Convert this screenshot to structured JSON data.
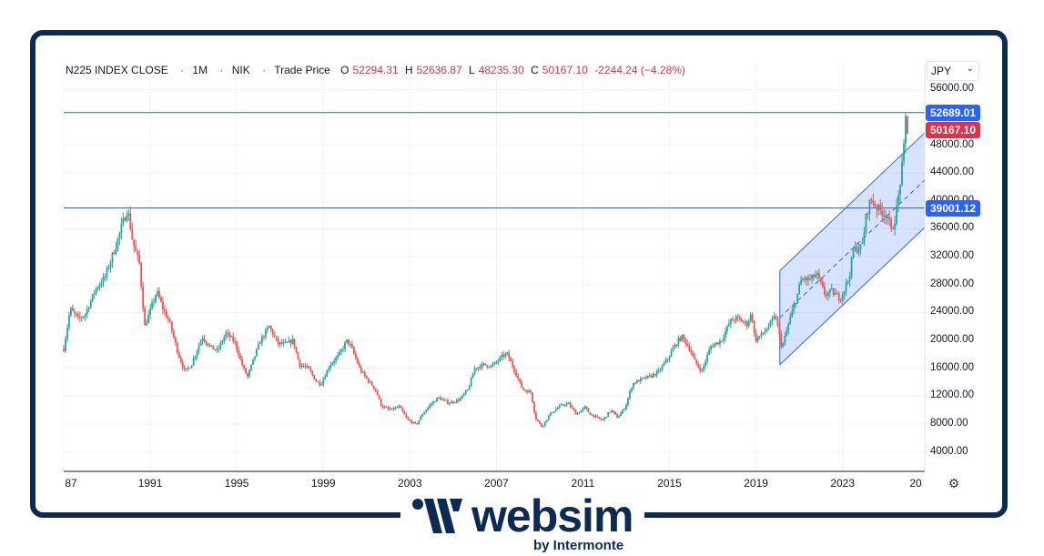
{
  "header": {
    "symbol": "N225 INDEX CLOSE",
    "interval": "1M",
    "exchange": "NIK",
    "price_type": "Trade Price",
    "open_label": "O",
    "open": "52294.31",
    "high_label": "H",
    "high": "52636.87",
    "low_label": "L",
    "low": "48235.30",
    "close_label": "C",
    "close": "50167.10",
    "change": "-2244.24 (−4.28%)"
  },
  "currency": "JPY",
  "price_tags": {
    "top": {
      "text": "52689.01",
      "value": 52689.01,
      "color": "#2962ff"
    },
    "last": {
      "text": "50167.10",
      "value": 50167.1,
      "color": "#e0314b"
    },
    "mid": {
      "text": "39001.12",
      "value": 39001.12,
      "color": "#2962ff"
    }
  },
  "brand": {
    "name": "websim",
    "tagline": "by Intermonte"
  },
  "colors": {
    "up": "#26a69a",
    "down": "#ef5350",
    "line": "#2962ff",
    "frame": "#0d2a52"
  },
  "chart_data": {
    "type": "candlestick",
    "title": "N225 INDEX CLOSE",
    "y_ticks": [
      "56000.00",
      "52000.00",
      "48000.00",
      "44000.00",
      "40000.00",
      "36000.00",
      "32000.00",
      "28000.00",
      "24000.00",
      "20000.00",
      "16000.00",
      "12000.00",
      "8000.00",
      "4000.00"
    ],
    "y_tick_values": [
      56000,
      52000,
      48000,
      44000,
      40000,
      36000,
      32000,
      28000,
      24000,
      20000,
      16000,
      12000,
      8000,
      4000
    ],
    "x_ticks": [
      "87",
      "1991",
      "1995",
      "1999",
      "2003",
      "2007",
      "2011",
      "2015",
      "2019",
      "2023",
      "20"
    ],
    "x_tick_values": [
      1987,
      1991,
      1995,
      1999,
      2003,
      2007,
      2011,
      2015,
      2019,
      2023,
      2027
    ],
    "xlim": [
      1987,
      2026.8
    ],
    "ylim": [
      1200,
      59700
    ],
    "horizontal_lines": [
      52689.01,
      39001.12
    ],
    "channel": {
      "x_start": 2020.1,
      "x_end": 2026.8,
      "upper": [
        30000,
        49800
      ],
      "lower": [
        16500,
        36200
      ],
      "mid": [
        23250,
        43000
      ]
    },
    "close_path": [
      [
        1987.0,
        18800
      ],
      [
        1987.3,
        24500
      ],
      [
        1987.7,
        23000
      ],
      [
        1988.0,
        23800
      ],
      [
        1988.5,
        27500
      ],
      [
        1988.9,
        29000
      ],
      [
        1989.4,
        33500
      ],
      [
        1989.8,
        37500
      ],
      [
        1989.95,
        38900
      ],
      [
        1990.2,
        34000
      ],
      [
        1990.5,
        31000
      ],
      [
        1990.75,
        22000
      ],
      [
        1990.95,
        23800
      ],
      [
        1991.3,
        27000
      ],
      [
        1991.6,
        24500
      ],
      [
        1991.9,
        22500
      ],
      [
        1992.3,
        18000
      ],
      [
        1992.6,
        15500
      ],
      [
        1992.9,
        16500
      ],
      [
        1993.4,
        20500
      ],
      [
        1993.8,
        19000
      ],
      [
        1994.1,
        18500
      ],
      [
        1994.5,
        21000
      ],
      [
        1994.9,
        19800
      ],
      [
        1995.3,
        16000
      ],
      [
        1995.5,
        14800
      ],
      [
        1995.8,
        17500
      ],
      [
        1996.1,
        20000
      ],
      [
        1996.5,
        22000
      ],
      [
        1996.9,
        19500
      ],
      [
        1997.3,
        19500
      ],
      [
        1997.6,
        20000
      ],
      [
        1997.9,
        16500
      ],
      [
        1998.3,
        16000
      ],
      [
        1998.7,
        14000
      ],
      [
        1998.9,
        13800
      ],
      [
        1999.3,
        16500
      ],
      [
        1999.7,
        17800
      ],
      [
        2000.1,
        20000
      ],
      [
        2000.3,
        19000
      ],
      [
        2000.7,
        15800
      ],
      [
        2001.0,
        14500
      ],
      [
        2001.4,
        13000
      ],
      [
        2001.7,
        10500
      ],
      [
        2002.1,
        10000
      ],
      [
        2002.5,
        10500
      ],
      [
        2002.9,
        8600
      ],
      [
        2003.3,
        7900
      ],
      [
        2003.6,
        9500
      ],
      [
        2003.9,
        10600
      ],
      [
        2004.3,
        11800
      ],
      [
        2004.8,
        11000
      ],
      [
        2005.3,
        11500
      ],
      [
        2005.7,
        13000
      ],
      [
        2006.0,
        16000
      ],
      [
        2006.4,
        16500
      ],
      [
        2006.8,
        16300
      ],
      [
        2007.3,
        17800
      ],
      [
        2007.5,
        18000
      ],
      [
        2007.9,
        15300
      ],
      [
        2008.2,
        13000
      ],
      [
        2008.6,
        12500
      ],
      [
        2008.8,
        8900
      ],
      [
        2009.1,
        7600
      ],
      [
        2009.5,
        9500
      ],
      [
        2009.9,
        10500
      ],
      [
        2010.3,
        11000
      ],
      [
        2010.7,
        9400
      ],
      [
        2011.1,
        10400
      ],
      [
        2011.3,
        9500
      ],
      [
        2011.9,
        8500
      ],
      [
        2012.3,
        10000
      ],
      [
        2012.6,
        8900
      ],
      [
        2012.95,
        10400
      ],
      [
        2013.3,
        13800
      ],
      [
        2013.7,
        14400
      ],
      [
        2014.1,
        14800
      ],
      [
        2014.5,
        15500
      ],
      [
        2014.9,
        17300
      ],
      [
        2015.4,
        20000
      ],
      [
        2015.6,
        20500
      ],
      [
        2015.9,
        19000
      ],
      [
        2016.2,
        16800
      ],
      [
        2016.5,
        15600
      ],
      [
        2016.9,
        19100
      ],
      [
        2017.4,
        20000
      ],
      [
        2017.8,
        22700
      ],
      [
        2018.1,
        23200
      ],
      [
        2018.6,
        22300
      ],
      [
        2018.8,
        24000
      ],
      [
        2018.95,
        20000
      ],
      [
        2019.4,
        21200
      ],
      [
        2019.9,
        23500
      ],
      [
        2020.2,
        18900
      ],
      [
        2020.5,
        22300
      ],
      [
        2020.9,
        26400
      ],
      [
        2021.1,
        28800
      ],
      [
        2021.5,
        28700
      ],
      [
        2021.8,
        29500
      ],
      [
        2022.2,
        26500
      ],
      [
        2022.5,
        27000
      ],
      [
        2022.9,
        26000
      ],
      [
        2023.3,
        29000
      ],
      [
        2023.5,
        33000
      ],
      [
        2023.9,
        33400
      ],
      [
        2024.1,
        38000
      ],
      [
        2024.3,
        40300
      ],
      [
        2024.6,
        39000
      ],
      [
        2024.8,
        38500
      ],
      [
        2025.1,
        37800
      ],
      [
        2025.25,
        35500
      ],
      [
        2025.45,
        37800
      ],
      [
        2025.6,
        41000
      ],
      [
        2025.75,
        44900
      ],
      [
        2025.85,
        48000
      ],
      [
        2025.9,
        52300
      ],
      [
        2026.0,
        50167
      ]
    ]
  }
}
